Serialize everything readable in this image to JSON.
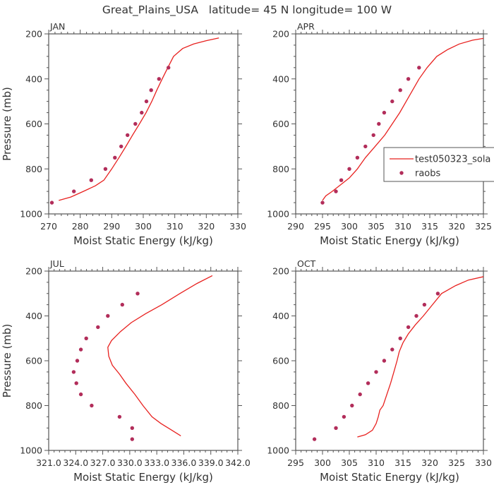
{
  "figure_title": "Great_Plains_USA   latitude= 45 N longitude= 100 W",
  "colors": {
    "model": "#e8211f",
    "raobs": "#b22d5a",
    "axis": "#555555",
    "text": "#333333"
  },
  "legend": {
    "model_label": "test050323_sola",
    "raobs_label": "raobs",
    "placement": "right-middle of APR panel"
  },
  "chart_data": [
    {
      "type": "line",
      "panel": "JAN",
      "title": "JAN",
      "xlabel": "Moist Static Energy (kJ/kg)",
      "ylabel": "Pressure (mb)",
      "xlim": [
        270,
        330
      ],
      "ylim": [
        1000,
        200
      ],
      "xticks": [
        270,
        280,
        290,
        300,
        310,
        320,
        330
      ],
      "xticklabels": [
        "270",
        "280",
        "290",
        "300",
        "310",
        "320",
        "330"
      ],
      "yticks": [
        200,
        400,
        600,
        800,
        1000
      ],
      "yticklabels": [
        "200",
        "400",
        "600",
        "800",
        "1000"
      ],
      "series": [
        {
          "name": "test050323_sola",
          "kind": "line",
          "points": [
            [
              273.2,
              940
            ],
            [
              277,
              925
            ],
            [
              281,
              900
            ],
            [
              284.8,
              875
            ],
            [
              287.5,
              850
            ],
            [
              290,
              800
            ],
            [
              292.3,
              750
            ],
            [
              294.5,
              700
            ],
            [
              296.6,
              650
            ],
            [
              298.8,
              600
            ],
            [
              300.9,
              550
            ],
            [
              302.7,
              500
            ],
            [
              304.3,
              450
            ],
            [
              306,
              400
            ],
            [
              307.8,
              350
            ],
            [
              309.6,
              300
            ],
            [
              312.5,
              265
            ],
            [
              316,
              245
            ],
            [
              320,
              230
            ],
            [
              324,
              218
            ]
          ]
        },
        {
          "name": "raobs",
          "kind": "scatter",
          "points": [
            [
              271,
              950
            ],
            [
              278,
              900
            ],
            [
              283.5,
              850
            ],
            [
              288,
              800
            ],
            [
              291,
              750
            ],
            [
              293,
              700
            ],
            [
              295,
              650
            ],
            [
              297.5,
              600
            ],
            [
              299.5,
              550
            ],
            [
              301,
              500
            ],
            [
              302.5,
              450
            ],
            [
              305,
              400
            ],
            [
              308,
              350
            ]
          ]
        }
      ]
    },
    {
      "type": "line",
      "panel": "APR",
      "title": "APR",
      "xlabel": "Moist Static Energy (kJ/kg)",
      "ylabel": "",
      "xlim": [
        290,
        325
      ],
      "ylim": [
        1000,
        200
      ],
      "xticks": [
        290,
        295,
        300,
        305,
        310,
        315,
        320,
        325
      ],
      "xticklabels": [
        "290",
        "295",
        "300",
        "305",
        "310",
        "315",
        "320",
        "325"
      ],
      "yticks": [
        200,
        400,
        600,
        800,
        1000
      ],
      "yticklabels": [
        "200",
        "400",
        "600",
        "800",
        "1000"
      ],
      "series": [
        {
          "name": "test050323_sola",
          "kind": "line",
          "points": [
            [
              295,
              940
            ],
            [
              295.6,
              920
            ],
            [
              296.8,
              900
            ],
            [
              298.4,
              870
            ],
            [
              300,
              840
            ],
            [
              301.5,
              800
            ],
            [
              303,
              750
            ],
            [
              304.8,
              700
            ],
            [
              306.6,
              650
            ],
            [
              308,
              600
            ],
            [
              309.4,
              550
            ],
            [
              310.6,
              500
            ],
            [
              311.8,
              450
            ],
            [
              313,
              400
            ],
            [
              314.5,
              350
            ],
            [
              316.3,
              300
            ],
            [
              318.3,
              270
            ],
            [
              320.5,
              245
            ],
            [
              323,
              228
            ],
            [
              325,
              220
            ]
          ]
        },
        {
          "name": "raobs",
          "kind": "scatter",
          "points": [
            [
              295,
              950
            ],
            [
              297.5,
              900
            ],
            [
              298.5,
              850
            ],
            [
              300,
              800
            ],
            [
              301.5,
              750
            ],
            [
              303,
              700
            ],
            [
              304.5,
              650
            ],
            [
              305.5,
              600
            ],
            [
              306.5,
              550
            ],
            [
              308,
              500
            ],
            [
              309.5,
              450
            ],
            [
              311,
              400
            ],
            [
              313,
              350
            ]
          ]
        }
      ]
    },
    {
      "type": "line",
      "panel": "JUL",
      "title": "JUL",
      "xlabel": "Moist Static Energy (kJ/kg)",
      "ylabel": "Pressure (mb)",
      "xlim": [
        321.03,
        342.03
      ],
      "ylim": [
        1000,
        200
      ],
      "xticks": [
        321.03,
        324.03,
        327.03,
        330.03,
        333.03,
        336.03,
        339.03,
        342.03
      ],
      "xticklabels": [
        "321.0",
        "324.0",
        "327.0",
        "330.0",
        "333.0",
        "336.0",
        "339.0",
        "342.0"
      ],
      "yticks": [
        200,
        400,
        600,
        800,
        1000
      ],
      "yticklabels": [
        "200",
        "400",
        "600",
        "800",
        "1000"
      ],
      "series": [
        {
          "name": "test050323_sola",
          "kind": "line",
          "points": [
            [
              335.7,
              935
            ],
            [
              335.3,
              925
            ],
            [
              334.5,
              905
            ],
            [
              333.5,
              880
            ],
            [
              332.5,
              850
            ],
            [
              331.5,
              800
            ],
            [
              330.6,
              750
            ],
            [
              329.6,
              700
            ],
            [
              328.9,
              660
            ],
            [
              328.1,
              620
            ],
            [
              327.7,
              580
            ],
            [
              327.6,
              540
            ],
            [
              328,
              510
            ],
            [
              329,
              470
            ],
            [
              330.2,
              430
            ],
            [
              331.8,
              390
            ],
            [
              333.6,
              350
            ],
            [
              335.6,
              300
            ],
            [
              337.5,
              255
            ],
            [
              339.2,
              220
            ]
          ]
        },
        {
          "name": "raobs",
          "kind": "scatter",
          "points": [
            [
              330.3,
              950
            ],
            [
              330.3,
              900
            ],
            [
              328.9,
              850
            ],
            [
              325.8,
              800
            ],
            [
              324.6,
              750
            ],
            [
              324.1,
              700
            ],
            [
              323.8,
              650
            ],
            [
              324.2,
              600
            ],
            [
              324.6,
              550
            ],
            [
              325.2,
              500
            ],
            [
              326.5,
              450
            ],
            [
              327.6,
              400
            ],
            [
              329.2,
              350
            ],
            [
              330.9,
              300
            ]
          ]
        }
      ]
    },
    {
      "type": "line",
      "panel": "OCT",
      "title": "OCT",
      "xlabel": "Moist Static Energy (kJ/kg)",
      "ylabel": "",
      "xlim": [
        295,
        330
      ],
      "ylim": [
        1000,
        200
      ],
      "xticks": [
        295,
        300,
        305,
        310,
        315,
        320,
        325,
        330
      ],
      "xticklabels": [
        "295",
        "300",
        "305",
        "310",
        "315",
        "320",
        "325",
        "330"
      ],
      "yticks": [
        200,
        400,
        600,
        800,
        1000
      ],
      "yticklabels": [
        "200",
        "400",
        "600",
        "800",
        "1000"
      ],
      "series": [
        {
          "name": "test050323_sola",
          "kind": "line",
          "points": [
            [
              306.5,
              940
            ],
            [
              308,
              930
            ],
            [
              309.3,
              910
            ],
            [
              310,
              880
            ],
            [
              310.4,
              850
            ],
            [
              310.7,
              820
            ],
            [
              311.3,
              800
            ],
            [
              312,
              750
            ],
            [
              312.7,
              700
            ],
            [
              313.3,
              650
            ],
            [
              313.9,
              600
            ],
            [
              314.3,
              560
            ],
            [
              315,
              520
            ],
            [
              316,
              480
            ],
            [
              317.3,
              440
            ],
            [
              318.8,
              400
            ],
            [
              320.5,
              350
            ],
            [
              322.2,
              300
            ],
            [
              324.8,
              265
            ],
            [
              327.2,
              240
            ],
            [
              330,
              225
            ]
          ]
        },
        {
          "name": "raobs",
          "kind": "scatter",
          "points": [
            [
              298.5,
              950
            ],
            [
              302.5,
              900
            ],
            [
              304,
              850
            ],
            [
              305.5,
              800
            ],
            [
              307,
              750
            ],
            [
              308.5,
              700
            ],
            [
              310,
              650
            ],
            [
              311.5,
              600
            ],
            [
              313,
              550
            ],
            [
              314.5,
              500
            ],
            [
              316,
              450
            ],
            [
              317.5,
              400
            ],
            [
              319,
              350
            ],
            [
              321.5,
              300
            ]
          ]
        }
      ]
    }
  ]
}
